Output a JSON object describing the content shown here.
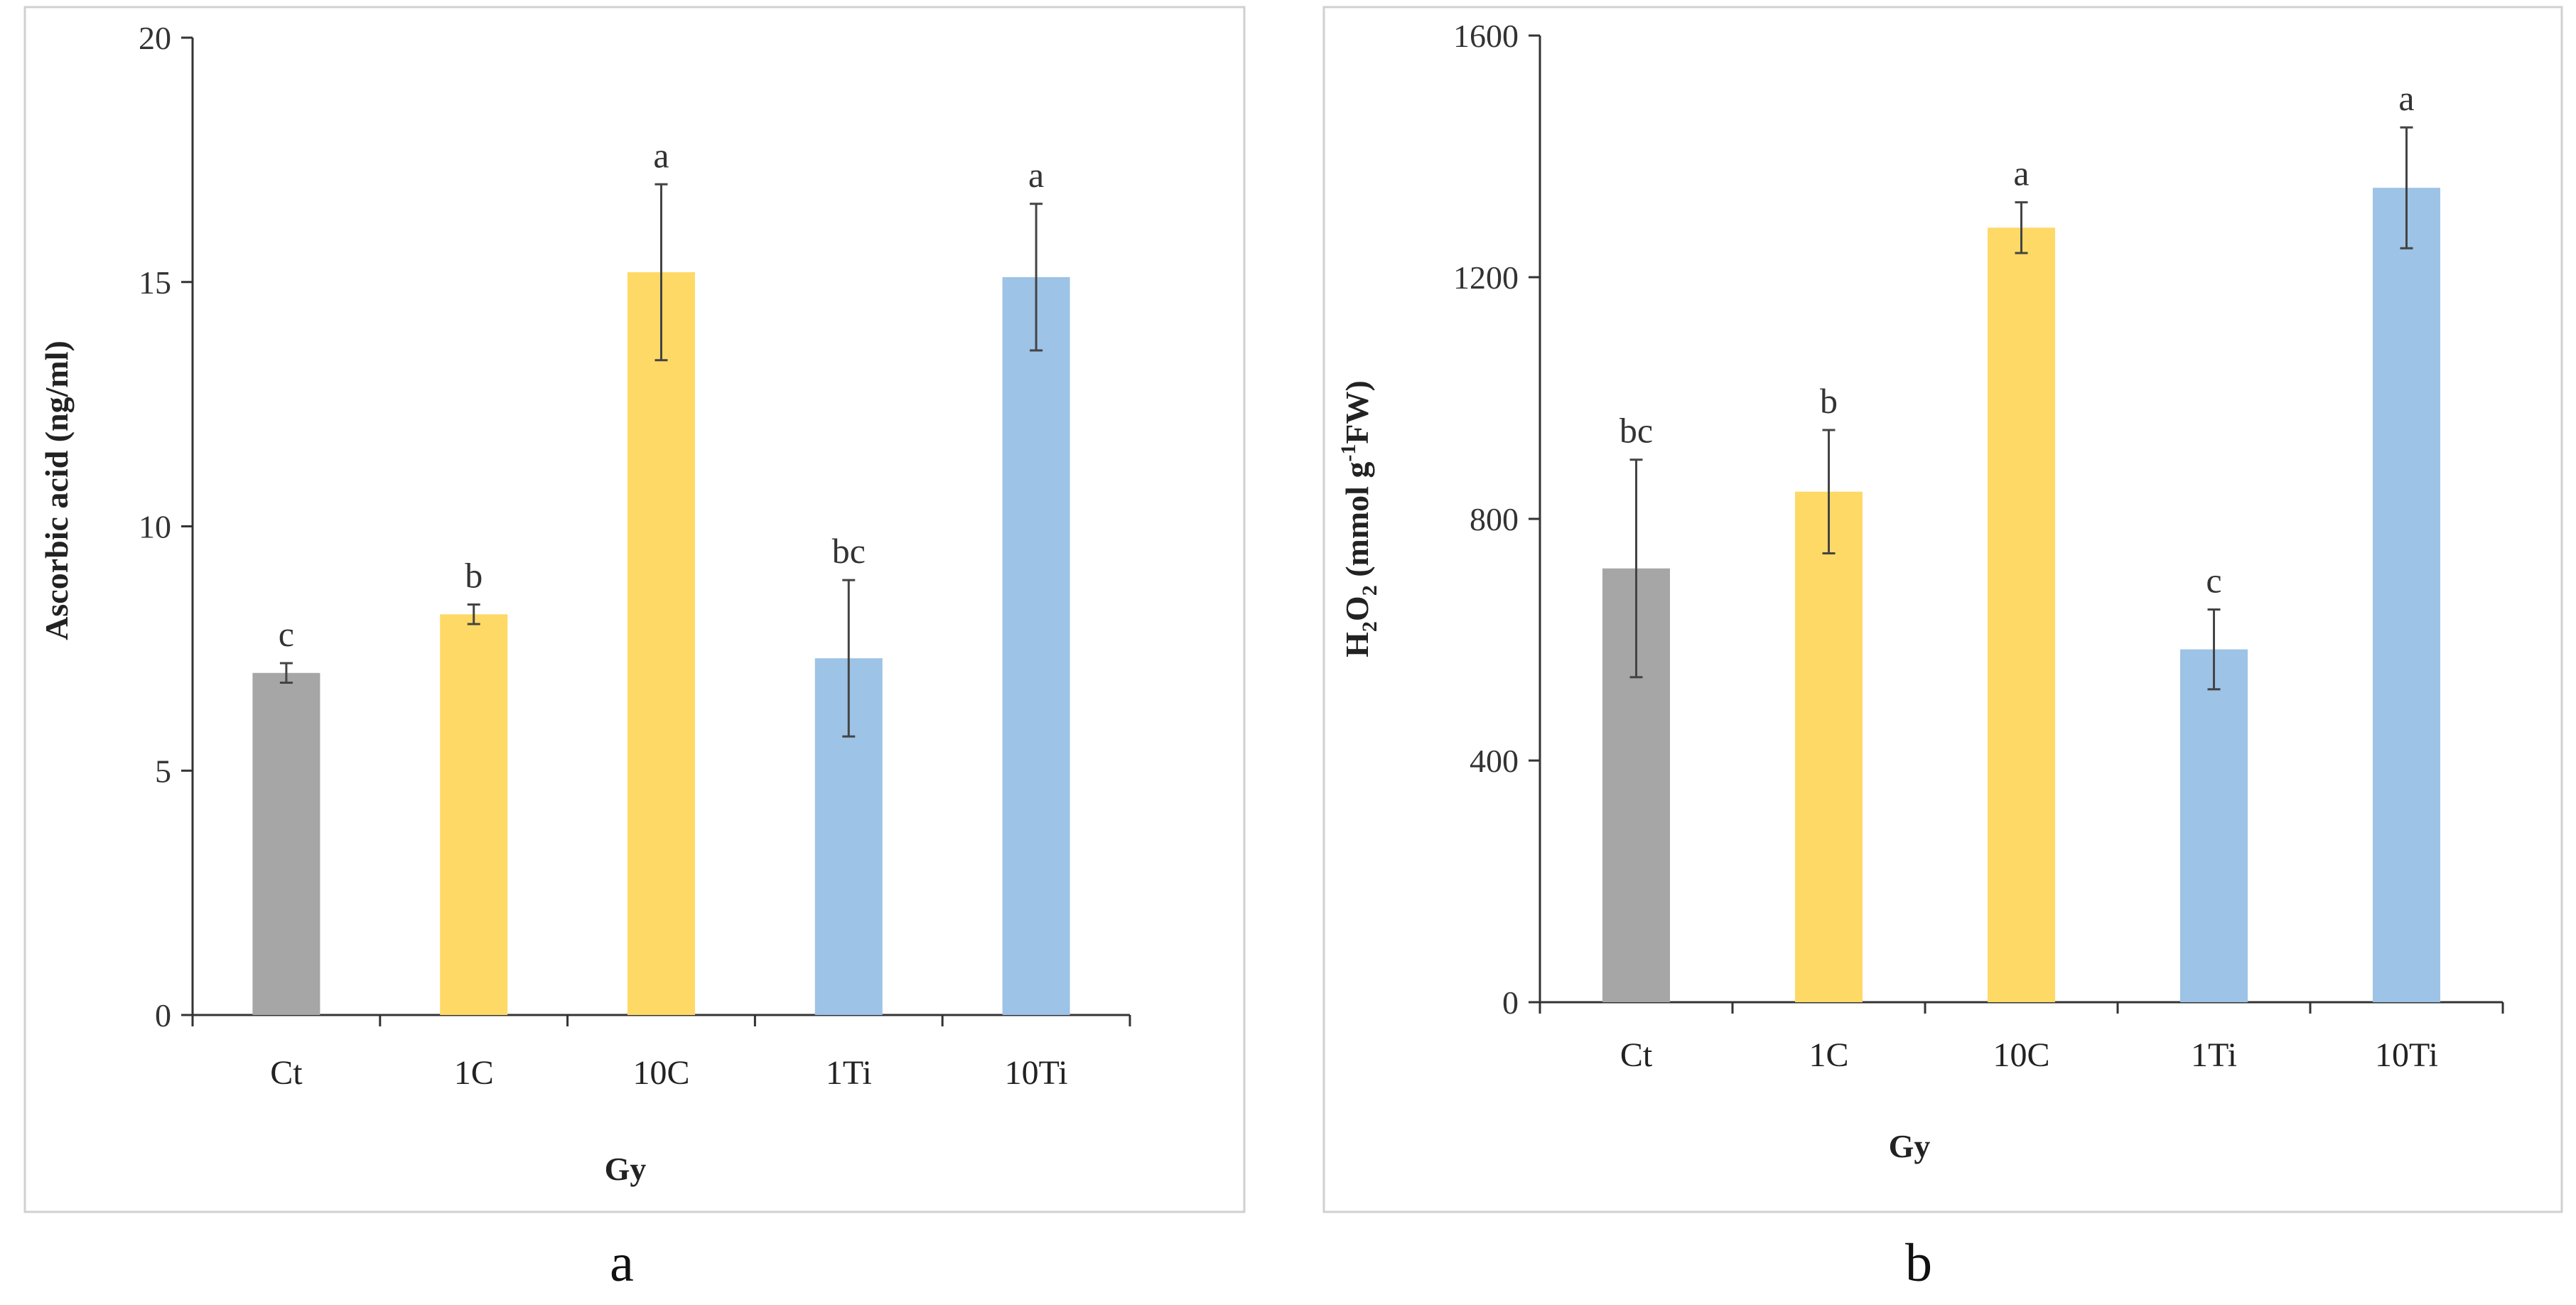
{
  "chart_data": [
    {
      "type": "bar",
      "panel_label": "a",
      "title": "",
      "xlabel": "Gy",
      "ylabel": "Ascorbic acid (ng/ml)",
      "ylim": [
        0,
        20
      ],
      "yticks": [
        0,
        5,
        10,
        15,
        20
      ],
      "categories": [
        "Ct",
        "1C",
        "10C",
        "1Ti",
        "10Ti"
      ],
      "values": [
        7.0,
        8.2,
        15.2,
        7.3,
        15.1
      ],
      "errors": [
        0.2,
        0.2,
        1.8,
        1.6,
        1.5
      ],
      "significance": [
        "c",
        "b",
        "a",
        "bc",
        "a"
      ],
      "colors": [
        "#a6a6a6",
        "#ffd966",
        "#ffd966",
        "#9dc3e6",
        "#9dc3e6"
      ]
    },
    {
      "type": "bar",
      "panel_label": "b",
      "title": "",
      "xlabel": "Gy",
      "ylabel_parts": [
        "H",
        "2",
        "O",
        "2",
        " (mmol g",
        "-1",
        "FW)"
      ],
      "ylim": [
        0,
        1600
      ],
      "yticks": [
        0,
        400,
        800,
        1200,
        1600
      ],
      "categories": [
        "Ct",
        "1C",
        "10C",
        "1Ti",
        "10Ti"
      ],
      "values": [
        718,
        845,
        1282,
        584,
        1348
      ],
      "errors": [
        180,
        102,
        42,
        66,
        100
      ],
      "significance": [
        "bc",
        "b",
        "a",
        "c",
        "a"
      ],
      "colors": [
        "#a6a6a6",
        "#ffd966",
        "#ffd966",
        "#9dc3e6",
        "#9dc3e6"
      ]
    }
  ]
}
